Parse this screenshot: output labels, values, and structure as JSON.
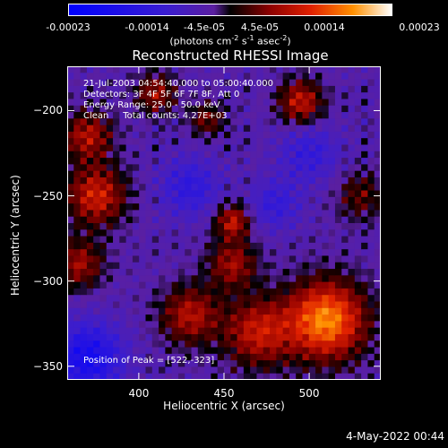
{
  "colorbar": {
    "ticks": [
      "-0.00023",
      "-0.00014",
      "-4.5e-05",
      "4.5e-05",
      "0.00014",
      "0.00023"
    ],
    "units_main": "(photons cm",
    "units_exp1": "-2",
    "units_mid": " s",
    "units_exp2": "-1",
    "units_mid2": " asec",
    "units_exp3": "-2",
    "units_end": ")"
  },
  "chart_data": {
    "type": "heatmap",
    "title": "Reconstructed RHESSI Image",
    "xlabel": "Heliocentric X (arcsec)",
    "ylabel": "Heliocentric Y (arcsec)",
    "xlim": [
      358,
      542
    ],
    "ylim": [
      -358,
      -174
    ],
    "x_ticks": [
      400,
      450,
      500
    ],
    "y_ticks": [
      -200,
      -250,
      -300,
      -350
    ],
    "color_range": [
      -0.00023,
      0.00023
    ],
    "colorbar_ticks": [
      -0.00023,
      -0.00014,
      -4.5e-05,
      4.5e-05,
      0.00014,
      0.00023
    ],
    "peak_position": [
      522,
      -323
    ]
  },
  "info": {
    "time": "21-Jul-2003 04:54:40.000 to 05:00:40.000",
    "detectors": "Detectors: 3F 4F 5F 6F 7F 8F, Att 0",
    "energy": "Energy Range: 25.0 - 50.0 keV",
    "clean": "Clean     Total counts: 4.27E+03",
    "peak": "Position of Peak = [522,-323]"
  },
  "date_stamp": "4-May-2022 00:44"
}
